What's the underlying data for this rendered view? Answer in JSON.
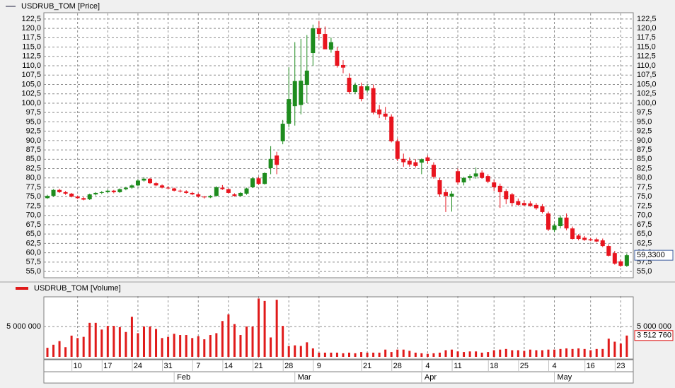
{
  "chart_data": [
    {
      "type": "candlestick",
      "series_name": "USDRUB_TOM [Price]",
      "up_color": "#1e8c1e",
      "down_color": "#e8141e",
      "open": [
        74.6,
        75.2,
        76.8,
        76.2,
        75.8,
        75.0,
        74.6,
        74.3,
        75.6,
        76.0,
        76.2,
        76.6,
        76.2,
        77.0,
        77.4,
        78.0,
        79.3,
        79.8,
        78.6,
        78.0,
        77.4,
        77.2,
        76.6,
        76.4,
        76.0,
        75.6,
        75.0,
        74.8,
        75.2,
        77.4,
        77.0,
        75.6,
        75.2,
        75.8,
        77.5,
        79.9,
        78.4,
        82.6,
        86.0,
        89.8,
        94.5,
        99.2,
        99.5,
        104.9,
        113.4,
        120.0,
        118.5,
        114.3,
        114.0,
        110.2,
        106.8,
        103.0,
        104.5,
        103.4,
        104.0,
        98.3,
        97.2,
        96.4,
        89.8,
        85.1,
        84.6,
        84.2,
        84.1,
        85.5,
        83.5,
        79.4,
        76.2,
        75.0,
        81.8,
        78.8,
        80.0,
        80.4,
        81.4,
        80.5,
        78.8,
        77.9,
        76.5,
        75.6,
        73.8,
        73.3,
        73.2,
        72.8,
        72.4,
        70.5,
        66.1,
        67.1,
        69.4,
        66.5,
        64.6,
        64.0,
        63.6,
        63.6,
        63.3,
        61.8,
        59.9,
        57.7,
        56.5
      ],
      "high": [
        75.5,
        77.0,
        77.1,
        76.5,
        76.0,
        75.3,
        74.9,
        75.8,
        76.2,
        76.5,
        76.9,
        76.8,
        77.2,
        77.6,
        78.3,
        79.6,
        80.2,
        80.0,
        78.9,
        78.3,
        77.8,
        77.4,
        76.9,
        76.7,
        76.3,
        75.9,
        75.2,
        75.4,
        77.8,
        78.1,
        77.2,
        75.9,
        76.2,
        77.4,
        80.2,
        80.3,
        81.5,
        88.5,
        87.0,
        95.5,
        109.6,
        116.3,
        117.2,
        118.2,
        121.0,
        122.0,
        120.5,
        117.5,
        115.0,
        111.5,
        108.0,
        105.5,
        105.5,
        105.0,
        105.0,
        99.5,
        99.0,
        97.0,
        90.5,
        86.5,
        85.5,
        85.0,
        85.2,
        86.0,
        84.2,
        80.0,
        77.0,
        76.5,
        82.5,
        80.3,
        81.0,
        82.8,
        82.0,
        81.0,
        79.5,
        78.5,
        77.0,
        76.0,
        74.5,
        74.0,
        73.8,
        73.3,
        73.0,
        71.0,
        67.8,
        70.0,
        70.5,
        67.0,
        65.0,
        64.5,
        64.0,
        64.0,
        63.8,
        62.3,
        60.5,
        58.2,
        59.8
      ],
      "low": [
        74.4,
        75.0,
        76.0,
        75.5,
        74.8,
        74.4,
        74.0,
        74.1,
        75.3,
        75.7,
        76.0,
        75.9,
        76.0,
        76.7,
        77.1,
        77.8,
        79.0,
        78.4,
        77.8,
        77.2,
        76.9,
        76.4,
        76.1,
        75.8,
        75.4,
        74.8,
        74.5,
        74.6,
        75.0,
        76.8,
        75.8,
        75.0,
        75.0,
        75.5,
        77.3,
        78.2,
        78.2,
        81.0,
        81.0,
        89.0,
        93.5,
        94.0,
        97.0,
        100.0,
        110.0,
        117.0,
        115.0,
        113.5,
        109.5,
        108.0,
        102.5,
        102.5,
        100.5,
        102.8,
        97.0,
        96.0,
        95.5,
        89.5,
        84.5,
        83.0,
        83.0,
        82.8,
        81.0,
        83.8,
        79.8,
        75.0,
        70.9,
        71.0,
        78.3,
        78.0,
        79.3,
        79.8,
        79.8,
        78.6,
        76.5,
        72.0,
        73.0,
        72.5,
        72.5,
        72.5,
        72.3,
        71.5,
        70.5,
        65.8,
        65.5,
        66.5,
        66.0,
        63.5,
        63.3,
        63.2,
        63.1,
        62.8,
        61.5,
        59.0,
        56.8,
        56.2,
        56.2
      ],
      "close": [
        75.2,
        76.8,
        76.2,
        75.8,
        75.0,
        74.6,
        74.2,
        75.6,
        76.0,
        76.2,
        76.6,
        76.2,
        77.0,
        77.4,
        78.0,
        79.3,
        79.8,
        78.6,
        78.0,
        77.4,
        77.2,
        76.6,
        76.4,
        76.0,
        75.6,
        75.0,
        74.8,
        75.2,
        77.5,
        77.0,
        76.0,
        75.2,
        76.0,
        77.2,
        79.9,
        78.4,
        81.3,
        85.1,
        83.5,
        94.5,
        101.1,
        105.9,
        106.0,
        108.7,
        120.0,
        118.5,
        114.4,
        116.3,
        110.0,
        109.5,
        103.0,
        104.9,
        101.1,
        104.5,
        97.5,
        97.0,
        96.4,
        89.8,
        85.1,
        84.2,
        83.6,
        83.2,
        85.0,
        84.5,
        80.3,
        75.6,
        75.2,
        75.8,
        78.8,
        80.0,
        80.5,
        81.2,
        80.0,
        79.0,
        77.5,
        76.2,
        74.3,
        73.3,
        72.8,
        72.7,
        72.5,
        71.9,
        70.9,
        66.2,
        67.3,
        69.4,
        66.5,
        63.7,
        63.7,
        63.4,
        63.3,
        63.0,
        61.8,
        59.2,
        57.1,
        56.5,
        59.33
      ],
      "last_value_label": "59,3300",
      "ylim": [
        53.5,
        123.8
      ],
      "yticks": [
        {
          "value": 55,
          "label": "55,0"
        },
        {
          "value": 57.5,
          "label": "57,5"
        },
        {
          "value": 60,
          "label": "60,0"
        },
        {
          "value": 62.5,
          "label": "62,5"
        },
        {
          "value": 65,
          "label": "65,0"
        },
        {
          "value": 67.5,
          "label": "67,5"
        },
        {
          "value": 70,
          "label": "70,0"
        },
        {
          "value": 72.5,
          "label": "72,5"
        },
        {
          "value": 75,
          "label": "75,0"
        },
        {
          "value": 77.5,
          "label": "77,5"
        },
        {
          "value": 80,
          "label": "80,0"
        },
        {
          "value": 82.5,
          "label": "82,5"
        },
        {
          "value": 85,
          "label": "85,0"
        },
        {
          "value": 87.5,
          "label": "87,5"
        },
        {
          "value": 90,
          "label": "90,0"
        },
        {
          "value": 92.5,
          "label": "92,5"
        },
        {
          "value": 95,
          "label": "95,0"
        },
        {
          "value": 97.5,
          "label": "97,5"
        },
        {
          "value": 100,
          "label": "100,0"
        },
        {
          "value": 102.5,
          "label": "102,5"
        },
        {
          "value": 105,
          "label": "105,0"
        },
        {
          "value": 107.5,
          "label": "107,5"
        },
        {
          "value": 110,
          "label": "110,0"
        },
        {
          "value": 112.5,
          "label": "112,5"
        },
        {
          "value": 115,
          "label": "115,0"
        },
        {
          "value": 117.5,
          "label": "117,5"
        },
        {
          "value": 120,
          "label": "120,0"
        },
        {
          "value": 122.5,
          "label": "122,5"
        }
      ],
      "grid": true
    },
    {
      "type": "bar",
      "series_name": "USDRUB_TOM [Volume]",
      "color": "#e01a1a",
      "categories": [
        null,
        null,
        null,
        null,
        null,
        "10",
        null,
        null,
        null,
        null,
        "17",
        null,
        null,
        null,
        null,
        "24",
        null,
        null,
        null,
        null,
        "31",
        null,
        null,
        null,
        null,
        "7",
        null,
        null,
        null,
        null,
        "14",
        null,
        null,
        null,
        null,
        "21",
        null,
        null,
        null,
        null,
        "28",
        null,
        null,
        null,
        null,
        "9",
        null,
        null,
        null,
        null,
        null,
        null,
        null,
        "21",
        null,
        null,
        null,
        null,
        "28",
        null,
        null,
        null,
        null,
        "4",
        null,
        null,
        null,
        null,
        "11",
        null,
        null,
        null,
        null,
        null,
        "18",
        null,
        null,
        null,
        null,
        "25",
        null,
        null,
        null,
        null,
        "4",
        null,
        null,
        null,
        null,
        null,
        "16",
        null,
        null,
        null,
        null,
        "23",
        null
      ],
      "month_categories": [
        null,
        null,
        null,
        null,
        null,
        null,
        null,
        null,
        null,
        null,
        null,
        null,
        null,
        null,
        null,
        null,
        null,
        null,
        null,
        null,
        null,
        "Feb",
        null,
        null,
        null,
        null,
        null,
        null,
        null,
        null,
        null,
        null,
        null,
        null,
        null,
        null,
        null,
        null,
        null,
        null,
        null,
        "Mar",
        null,
        null,
        null,
        null,
        null,
        null,
        null,
        null,
        null,
        null,
        null,
        null,
        null,
        null,
        null,
        null,
        null,
        null,
        null,
        null,
        "Apr",
        null,
        null,
        null,
        null,
        null,
        null,
        null,
        null,
        null,
        null,
        null,
        null,
        null,
        null,
        null,
        null,
        null,
        null,
        null,
        null,
        null,
        "May",
        null,
        null,
        null,
        null,
        null,
        null,
        null,
        null,
        null,
        null,
        null,
        null
      ],
      "values": [
        1500000,
        2000000,
        2600000,
        1600000,
        3500000,
        3100000,
        3300000,
        5600000,
        5600000,
        4500000,
        5100000,
        5100000,
        4900000,
        4100000,
        6600000,
        3900000,
        5000000,
        5000000,
        4600000,
        3100000,
        3300000,
        3800000,
        3600000,
        3600000,
        3100000,
        3400000,
        2900000,
        3600000,
        3900000,
        5900000,
        7000000,
        5400000,
        3600000,
        5000000,
        5000000,
        9600000,
        9200000,
        3200000,
        9400000,
        5100000,
        1800000,
        1900000,
        1800000,
        2400000,
        1400000,
        700000,
        700000,
        700000,
        700000,
        600000,
        700000,
        600000,
        800000,
        700000,
        700000,
        700000,
        1200000,
        800000,
        1200000,
        1200000,
        1000000,
        700000,
        600000,
        500000,
        600000,
        700000,
        1100000,
        1200000,
        900000,
        800000,
        900000,
        900000,
        700000,
        800000,
        1100000,
        1200000,
        1300000,
        1100000,
        1100000,
        1000000,
        1200000,
        1100000,
        1100000,
        1200000,
        1200000,
        1300000,
        1400000,
        1300000,
        1400000,
        1300000,
        1100000,
        1300000,
        1300000,
        3000000,
        2500000,
        2200000,
        3512760
      ],
      "last_value_label": "3 512 760",
      "ylim": [
        0,
        9880000
      ],
      "yticks": [
        {
          "value": 5000000,
          "label": "5 000 000"
        }
      ],
      "grid": true
    }
  ]
}
